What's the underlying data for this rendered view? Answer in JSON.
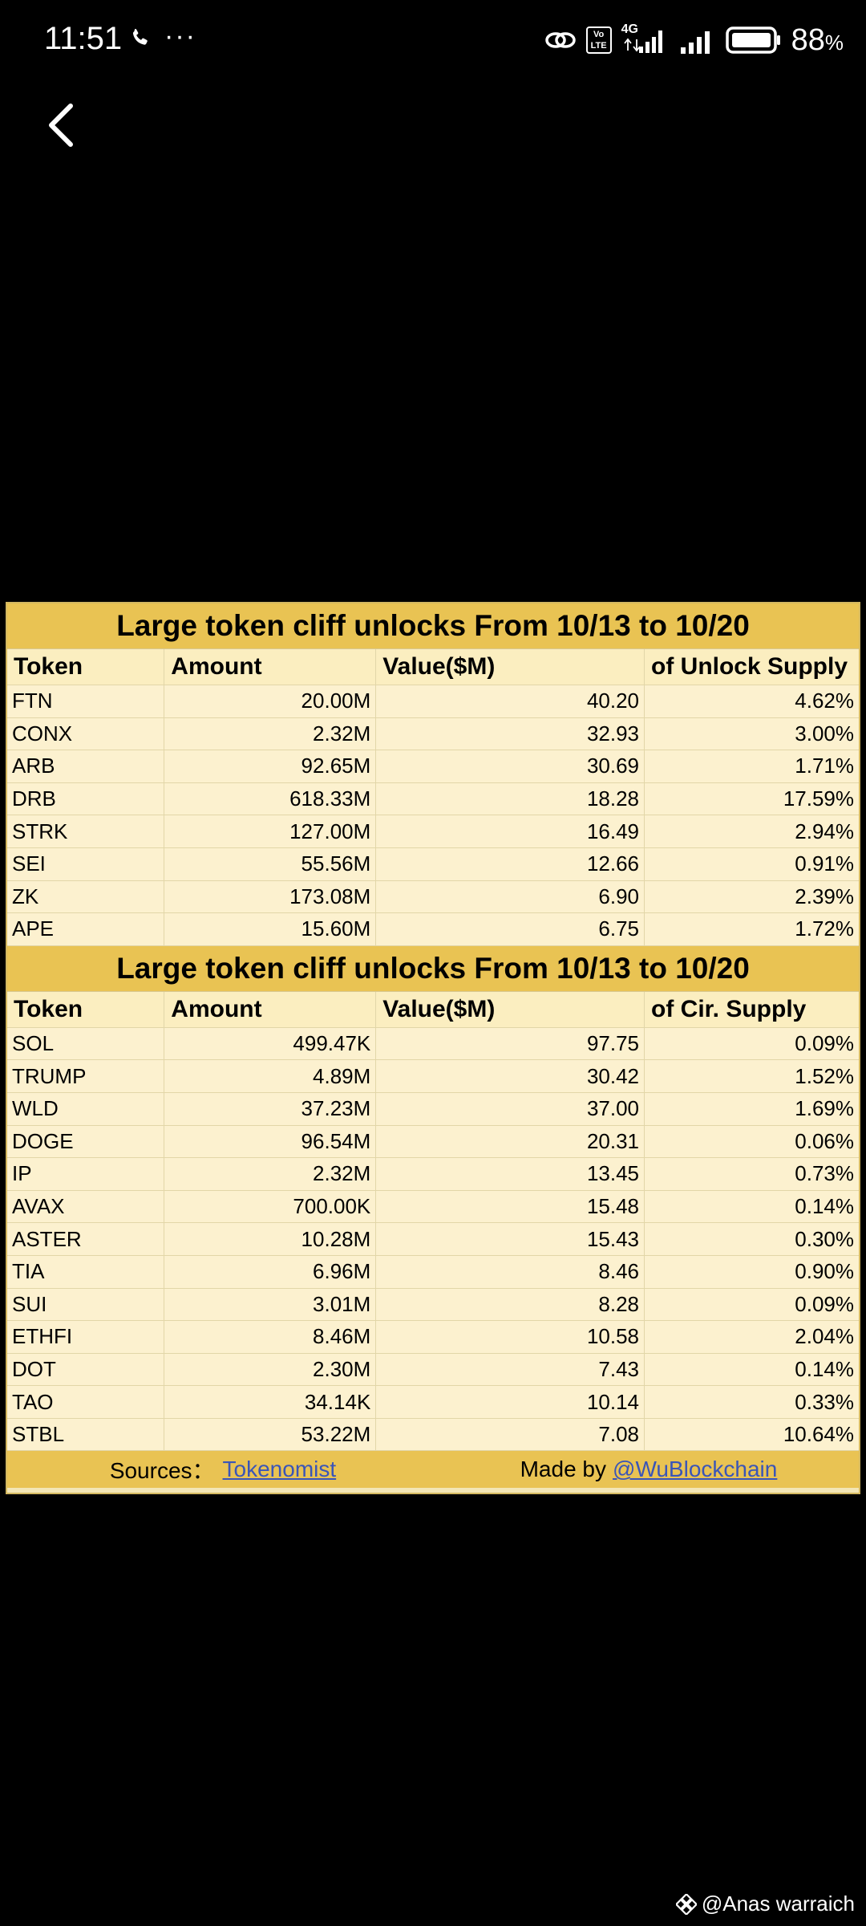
{
  "status_bar": {
    "time": "11:51",
    "more": "···",
    "network": "4G",
    "volte": "Vo LTE",
    "battery_pct": "88",
    "battery_unit": "%"
  },
  "icons": {
    "back": "back-arrow-icon",
    "call": "phone-icon",
    "link": "link-icon",
    "binance": "binance-icon"
  },
  "colors": {
    "title_bg": "#e9c353",
    "table_bg": "#fcf1cf",
    "link": "#3a55b8"
  },
  "table1": {
    "title": "Large token cliff unlocks From  10/13 to 10/20",
    "headers": [
      "Token",
      "Amount",
      "Value($M)",
      "of Unlock Supply"
    ],
    "rows": [
      [
        "FTN",
        "20.00M",
        "40.20",
        "4.62%"
      ],
      [
        "CONX",
        "2.32M",
        "32.93",
        "3.00%"
      ],
      [
        "ARB",
        "92.65M",
        "30.69",
        "1.71%"
      ],
      [
        "DRB",
        "618.33M",
        "18.28",
        "17.59%"
      ],
      [
        "STRK",
        "127.00M",
        "16.49",
        "2.94%"
      ],
      [
        "SEI",
        "55.56M",
        "12.66",
        "0.91%"
      ],
      [
        "ZK",
        "173.08M",
        "6.90",
        "2.39%"
      ],
      [
        "APE",
        "15.60M",
        "6.75",
        "1.72%"
      ]
    ]
  },
  "table2": {
    "title": "Large token cliff unlocks From  10/13 to 10/20",
    "headers": [
      "Token",
      "Amount",
      "Value($M)",
      "of Cir. Supply"
    ],
    "rows": [
      [
        "SOL",
        "499.47K",
        "97.75",
        "0.09%"
      ],
      [
        "TRUMP",
        "4.89M",
        "30.42",
        "1.52%"
      ],
      [
        "WLD",
        "37.23M",
        "37.00",
        "1.69%"
      ],
      [
        "DOGE",
        "96.54M",
        "20.31",
        "0.06%"
      ],
      [
        "IP",
        "2.32M",
        "13.45",
        "0.73%"
      ],
      [
        "AVAX",
        "700.00K",
        "15.48",
        "0.14%"
      ],
      [
        "ASTER",
        "10.28M",
        "15.43",
        "0.30%"
      ],
      [
        "TIA",
        "6.96M",
        "8.46",
        "0.90%"
      ],
      [
        "SUI",
        "3.01M",
        "8.28",
        "0.09%"
      ],
      [
        "ETHFI",
        "8.46M",
        "10.58",
        "2.04%"
      ],
      [
        "DOT",
        "2.30M",
        "7.43",
        "0.14%"
      ],
      [
        "TAO",
        "34.14K",
        "10.14",
        "0.33%"
      ],
      [
        "STBL",
        "53.22M",
        "7.08",
        "10.64%"
      ]
    ]
  },
  "footer": {
    "sources_label": "Sources：",
    "sources_link": "Tokenomist",
    "made_by_label": "Made by",
    "made_by_link": "@WuBlockchain"
  },
  "watermark": {
    "text": "@Anas warraich"
  }
}
